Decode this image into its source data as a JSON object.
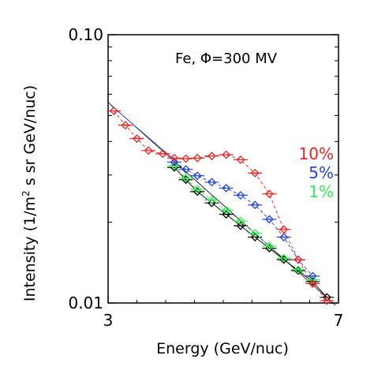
{
  "chart_data": {
    "type": "scatter",
    "annotation": "Fe, Φ=300 MV",
    "xlabel": "Energy (GeV/nuc)",
    "ylabel_prefix": "Intensity (1/m",
    "ylabel_sup": "2",
    "ylabel_suffix": " s sr GeV/nuc)",
    "xlim": [
      3,
      7
    ],
    "ylim": [
      0.01,
      0.1
    ],
    "yscale": "log",
    "xticks": [
      {
        "value": 3,
        "label": "3"
      },
      {
        "value": 7,
        "label": "7"
      }
    ],
    "yticks": [
      {
        "value": 0.01,
        "label": "0.01"
      },
      {
        "value": 0.1,
        "label": "0.10"
      }
    ],
    "legend_placement": "right",
    "series": [
      {
        "name": "1%",
        "color": "#33ee55",
        "x": [
          4.15,
          4.35,
          4.55,
          4.8,
          5.05,
          5.3,
          5.55,
          5.8,
          6.05,
          6.3,
          6.55
        ],
        "y": [
          0.0325,
          0.0292,
          0.0265,
          0.0242,
          0.0222,
          0.0202,
          0.0182,
          0.0163,
          0.0147,
          0.0133,
          0.0122
        ]
      },
      {
        "name": "5%",
        "color": "#2244dd",
        "x": [
          4.15,
          4.35,
          4.55,
          4.8,
          5.05,
          5.3,
          5.55,
          5.8,
          6.05,
          6.3,
          6.55
        ],
        "y": [
          0.0335,
          0.0315,
          0.0298,
          0.0282,
          0.0268,
          0.0252,
          0.0232,
          0.0205,
          0.0176,
          0.0145,
          0.0126
        ]
      },
      {
        "name": "10%",
        "color": "#ee2222",
        "x": [
          3.1,
          3.3,
          3.5,
          3.7,
          3.95,
          4.15,
          4.35,
          4.55,
          4.8,
          5.05,
          5.3,
          5.55,
          5.8,
          6.05,
          6.3,
          6.55,
          6.8
        ],
        "y": [
          0.052,
          0.046,
          0.041,
          0.037,
          0.036,
          0.0347,
          0.0345,
          0.0347,
          0.0353,
          0.0357,
          0.0342,
          0.0305,
          0.0255,
          0.0188,
          0.0145,
          0.0118,
          0.0102
        ]
      },
      {
        "name": "",
        "color": "#000000",
        "x": [
          4.15,
          4.35,
          4.55,
          4.8,
          5.05,
          5.3,
          5.55,
          5.8,
          6.05,
          6.3,
          6.55,
          6.8
        ],
        "y": [
          0.032,
          0.0288,
          0.026,
          0.0236,
          0.0214,
          0.0194,
          0.0176,
          0.016,
          0.0145,
          0.0132,
          0.012,
          0.0105
        ]
      }
    ]
  }
}
